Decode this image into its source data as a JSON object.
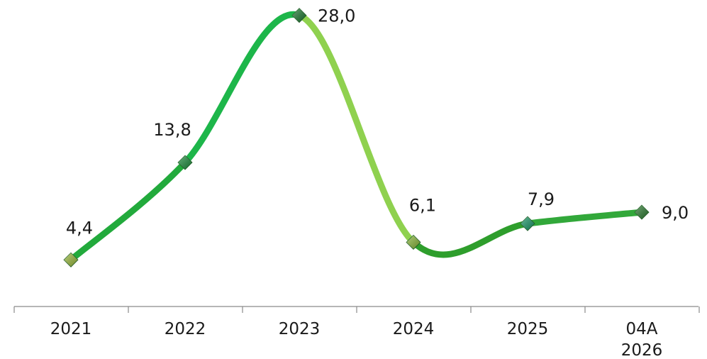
{
  "chart_data": {
    "type": "line",
    "categories": [
      [
        "2021"
      ],
      [
        "2022"
      ],
      [
        "2023"
      ],
      [
        "2024"
      ],
      [
        "2025"
      ],
      [
        "04A",
        "2026"
      ]
    ],
    "values": [
      4.4,
      13.8,
      28.0,
      6.1,
      7.9,
      9.0
    ],
    "value_labels": [
      "4,4",
      "13,8",
      "28,0",
      "6,1",
      "7,9",
      "9,0"
    ],
    "segment_colors": [
      "#22aa3c",
      "#1db64a",
      "#8fd14f",
      "#2e9e2c",
      "#32a83a"
    ],
    "marker_colors": [
      "#9bbb3c",
      "#1e8e3e",
      "#1e7a32",
      "#8ab83a",
      "#1a9a6a",
      "#2e7d32"
    ],
    "axis_color": "#8a8a8a",
    "smooth": true,
    "title": "",
    "xlabel": "",
    "ylabel": "",
    "grid": false,
    "legend": "none"
  }
}
